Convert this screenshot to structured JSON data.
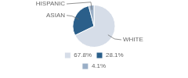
{
  "chart_data": {
    "type": "pie",
    "categories": [
      "WHITE",
      "ASIAN",
      "HISPANIC"
    ],
    "values": [
      67.8,
      28.1,
      4.1
    ],
    "value_labels": [
      "67.8%",
      "28.1%",
      "4.1%"
    ],
    "colors": [
      "#d6dde8",
      "#2b5f8a",
      "#9aafc7"
    ],
    "legend": "bottom"
  }
}
